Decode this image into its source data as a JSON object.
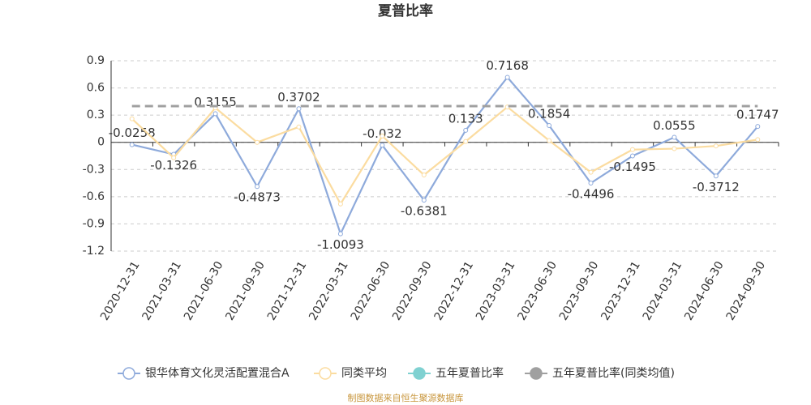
{
  "chart_data": {
    "type": "line",
    "title": "夏普比率",
    "categories": [
      "2020-12-31",
      "2021-03-31",
      "2021-06-30",
      "2021-09-30",
      "2021-12-31",
      "2022-03-31",
      "2022-06-30",
      "2022-09-30",
      "2022-12-31",
      "2023-03-31",
      "2023-06-30",
      "2023-09-30",
      "2023-12-31",
      "2024-03-31",
      "2024-06-30",
      "2024-09-30"
    ],
    "series": [
      {
        "name": "银华体育文化灵活配置混合A",
        "color": "#8eaadb",
        "data_labels": true,
        "values": [
          -0.0258,
          -0.1326,
          0.3155,
          -0.4873,
          0.3702,
          -1.0093,
          -0.032,
          -0.6381,
          0.133,
          0.7168,
          0.1854,
          -0.4496,
          -0.1495,
          0.0555,
          -0.3712,
          0.1747
        ]
      },
      {
        "name": "同类平均",
        "color": "#fbdca0",
        "values": [
          0.26,
          -0.17,
          0.38,
          0.0,
          0.17,
          -0.68,
          0.07,
          -0.36,
          0.01,
          0.39,
          0.02,
          -0.33,
          -0.08,
          -0.07,
          -0.04,
          0.03
        ]
      },
      {
        "name": "五年夏普比率",
        "color": "#7fd1d1",
        "values": [
          null,
          null,
          null,
          null,
          null,
          null,
          null,
          null,
          null,
          null,
          null,
          null,
          null,
          null,
          null,
          null
        ]
      },
      {
        "name": "五年夏普比率(同类均值)",
        "color": "#a0a0a0",
        "dashed": true,
        "values": [
          0.4,
          0.4,
          0.4,
          0.4,
          0.4,
          0.4,
          0.4,
          0.4,
          0.4,
          0.4,
          0.4,
          0.4,
          0.4,
          0.4,
          0.4,
          0.4
        ]
      }
    ],
    "ylim": [
      -1.2,
      0.9
    ],
    "yticks": [
      0.9,
      0.6,
      0.3,
      0,
      -0.3,
      -0.6,
      -0.9,
      -1.2
    ],
    "grid": true,
    "footer": "制图数据来自恒生聚源数据库"
  }
}
